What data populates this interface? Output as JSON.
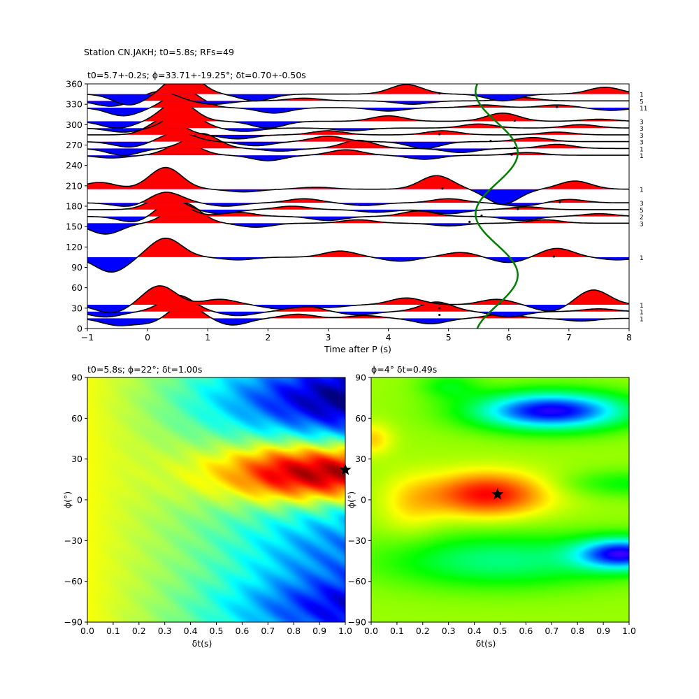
{
  "figure": {
    "suptitle": "Station CN.JAKH; t0=5.8s; RFs=49"
  },
  "chart_data": [
    {
      "type": "line",
      "panel": "receiver-functions",
      "title": "t0=5.7+-0.2s; ϕ=33.71+-19.25°; δt=0.70+-0.50s",
      "xlabel": "Time after P (s)",
      "ylabel": "",
      "xlim": [
        -1,
        8
      ],
      "ylim": [
        0,
        360
      ],
      "xticks": [
        -1,
        0,
        1,
        2,
        3,
        4,
        5,
        6,
        7,
        8
      ],
      "yticks": [
        0,
        30,
        60,
        90,
        120,
        150,
        180,
        210,
        240,
        270,
        300,
        330,
        360
      ],
      "positive_fill": "#ff0000",
      "negative_fill": "#0000ff",
      "traces": [
        {
          "baz": 15,
          "count": "1",
          "peaks": [
            [
              -0.5,
              -10
            ],
            [
              0.1,
              -8
            ],
            [
              0.6,
              22
            ],
            [
              1.4,
              -10
            ],
            [
              2.5,
              6
            ],
            [
              3.6,
              4
            ],
            [
              4.7,
              -8
            ],
            [
              5.9,
              6
            ],
            [
              7.2,
              -4
            ]
          ]
        },
        {
          "baz": 25,
          "count": "1",
          "peaks": [
            [
              -0.7,
              -8
            ],
            [
              0.5,
              24
            ],
            [
              1.5,
              -6
            ],
            [
              2.6,
              8
            ],
            [
              3.5,
              -5
            ],
            [
              4.8,
              14
            ],
            [
              6.0,
              -8
            ],
            [
              7.5,
              4
            ]
          ]
        },
        {
          "baz": 35,
          "count": "1",
          "peaks": [
            [
              -0.6,
              -12
            ],
            [
              0.2,
              28
            ],
            [
              1.2,
              8
            ],
            [
              2.2,
              -6
            ],
            [
              3.0,
              -4
            ],
            [
              4.3,
              10
            ],
            [
              5.8,
              8
            ],
            [
              6.7,
              -10
            ],
            [
              7.4,
              22
            ]
          ]
        },
        {
          "baz": 105,
          "count": "1",
          "peaks": [
            [
              -0.6,
              -22
            ],
            [
              0.3,
              28
            ],
            [
              1.5,
              -4
            ],
            [
              3.2,
              9
            ],
            [
              4.2,
              -6
            ],
            [
              5.2,
              7
            ],
            [
              6.0,
              -8
            ],
            [
              6.8,
              13
            ],
            [
              7.8,
              -4
            ]
          ]
        },
        {
          "baz": 155,
          "count": "3",
          "peaks": [
            [
              -0.7,
              -16
            ],
            [
              0.6,
              30
            ],
            [
              1.8,
              -6
            ],
            [
              3.5,
              5
            ],
            [
              5.0,
              -4
            ],
            [
              6.6,
              5
            ]
          ]
        },
        {
          "baz": 165,
          "count": "2",
          "peaks": [
            [
              -0.2,
              -9
            ],
            [
              0.4,
              22
            ],
            [
              1.5,
              6
            ],
            [
              3.0,
              -6
            ],
            [
              4.5,
              8
            ],
            [
              6.2,
              -6
            ],
            [
              7.5,
              4
            ]
          ]
        },
        {
          "baz": 175,
          "count": "5",
          "peaks": [
            [
              0.3,
              20
            ],
            [
              1.2,
              -6
            ],
            [
              2.4,
              5
            ],
            [
              3.8,
              -4
            ],
            [
              5.0,
              -6
            ],
            [
              6.3,
              4
            ]
          ]
        },
        {
          "baz": 185,
          "count": "3",
          "peaks": [
            [
              -0.3,
              -6
            ],
            [
              0.3,
              16
            ],
            [
              1.3,
              -5
            ],
            [
              2.6,
              6
            ],
            [
              3.6,
              -4
            ],
            [
              5.0,
              6
            ],
            [
              6.2,
              -5
            ],
            [
              7.0,
              5
            ]
          ]
        },
        {
          "baz": 205,
          "count": "1",
          "peaks": [
            [
              -0.8,
              10
            ],
            [
              0.3,
              32
            ],
            [
              1.6,
              -4
            ],
            [
              2.8,
              3
            ],
            [
              4.8,
              20
            ],
            [
              5.9,
              -22
            ],
            [
              7.1,
              12
            ]
          ]
        },
        {
          "baz": 255,
          "count": "1",
          "peaks": [
            [
              -0.6,
              -4
            ],
            [
              0.6,
              18
            ],
            [
              2.0,
              -8
            ],
            [
              3.3,
              8
            ],
            [
              4.6,
              -6
            ],
            [
              6.3,
              4
            ]
          ]
        },
        {
          "baz": 265,
          "count": "1",
          "peaks": [
            [
              -0.4,
              -10
            ],
            [
              0.9,
              22
            ],
            [
              2.2,
              -4
            ],
            [
              3.5,
              12
            ],
            [
              5.2,
              -6
            ],
            [
              6.8,
              6
            ]
          ]
        },
        {
          "baz": 275,
          "count": "3",
          "peaks": [
            [
              -0.3,
              -8
            ],
            [
              0.5,
              14
            ],
            [
              1.8,
              -6
            ],
            [
              3.0,
              8
            ],
            [
              4.6,
              -10
            ],
            [
              6.4,
              6
            ]
          ]
        },
        {
          "baz": 285,
          "count": "3",
          "peaks": [
            [
              0.3,
              24
            ],
            [
              1.5,
              -6
            ],
            [
              3.0,
              6
            ],
            [
              4.9,
              6
            ],
            [
              6.8,
              4
            ]
          ]
        },
        {
          "baz": 295,
          "count": "3",
          "peaks": [
            [
              -0.4,
              -6
            ],
            [
              0.6,
              24
            ],
            [
              1.6,
              -5
            ],
            [
              3.4,
              -4
            ],
            [
              5.5,
              6
            ],
            [
              7.2,
              5
            ]
          ]
        },
        {
          "baz": 305,
          "count": "3",
          "peaks": [
            [
              -0.5,
              -10
            ],
            [
              0.5,
              30
            ],
            [
              2.0,
              -10
            ],
            [
              4.0,
              8
            ],
            [
              5.9,
              12
            ],
            [
              7.5,
              3
            ]
          ]
        },
        {
          "baz": 325,
          "count": "11",
          "peaks": [
            [
              -0.4,
              -12
            ],
            [
              0.6,
              26
            ],
            [
              2.1,
              -8
            ],
            [
              4.0,
              -5
            ],
            [
              5.6,
              4
            ],
            [
              6.8,
              4
            ],
            [
              7.7,
              -4
            ]
          ]
        },
        {
          "baz": 335,
          "count": "5",
          "peaks": [
            [
              -0.6,
              -8
            ],
            [
              0.2,
              14
            ],
            [
              1.1,
              -5
            ],
            [
              2.6,
              4
            ],
            [
              4.4,
              -5
            ],
            [
              6.2,
              5
            ]
          ]
        },
        {
          "baz": 345,
          "count": "1",
          "peaks": [
            [
              -0.3,
              -16
            ],
            [
              0.6,
              32
            ],
            [
              1.8,
              -10
            ],
            [
              4.3,
              14
            ],
            [
              5.9,
              -10
            ],
            [
              7.6,
              10
            ]
          ]
        }
      ],
      "fast_axis_curve": {
        "color": "#007f00",
        "t0": 5.8,
        "amplitude": 0.35,
        "phase_deg": 33.71
      },
      "marker_points": [
        [
          4.85,
          20
        ],
        [
          4.85,
          30
        ],
        [
          5.85,
          37
        ],
        [
          6.75,
          106
        ],
        [
          5.35,
          157
        ],
        [
          5.55,
          166
        ],
        [
          6.15,
          176
        ],
        [
          6.85,
          186
        ],
        [
          4.9,
          206
        ],
        [
          6.05,
          256
        ],
        [
          6.1,
          266
        ],
        [
          5.7,
          276
        ],
        [
          4.85,
          286
        ],
        [
          6.1,
          306
        ],
        [
          6.8,
          326
        ],
        [
          4.85,
          346
        ]
      ]
    },
    {
      "type": "heatmap",
      "panel": "transverse-energy",
      "title": "t0=5.8s; ϕ=22°; δt=1.00s",
      "xlabel": "δt(s)",
      "ylabel": "ϕ(°)",
      "xlim": [
        0.0,
        1.0
      ],
      "ylim": [
        -90,
        90
      ],
      "xticks": [
        "0.0",
        "0.1",
        "0.2",
        "0.3",
        "0.4",
        "0.5",
        "0.6",
        "0.7",
        "0.8",
        "0.9",
        "1.0"
      ],
      "yticks": [
        "−90",
        "−60",
        "−30",
        "0",
        "30",
        "60",
        "90"
      ],
      "colormap": "jet",
      "best": {
        "dt": 1.0,
        "phi": 22
      }
    },
    {
      "type": "heatmap",
      "panel": "rc-correlation",
      "title": "ϕ=4° δt=0.49s",
      "xlabel": "δt(s)",
      "ylabel": "ϕ(°)",
      "xlim": [
        0.0,
        1.0
      ],
      "ylim": [
        -90,
        90
      ],
      "xticks": [
        "0.0",
        "0.1",
        "0.2",
        "0.3",
        "0.4",
        "0.5",
        "0.6",
        "0.7",
        "0.8",
        "0.9",
        "1.0"
      ],
      "yticks": [
        "−90",
        "−60",
        "−30",
        "0",
        "30",
        "60",
        "90"
      ],
      "colormap": "hsv",
      "best": {
        "dt": 0.49,
        "phi": 4
      }
    }
  ]
}
